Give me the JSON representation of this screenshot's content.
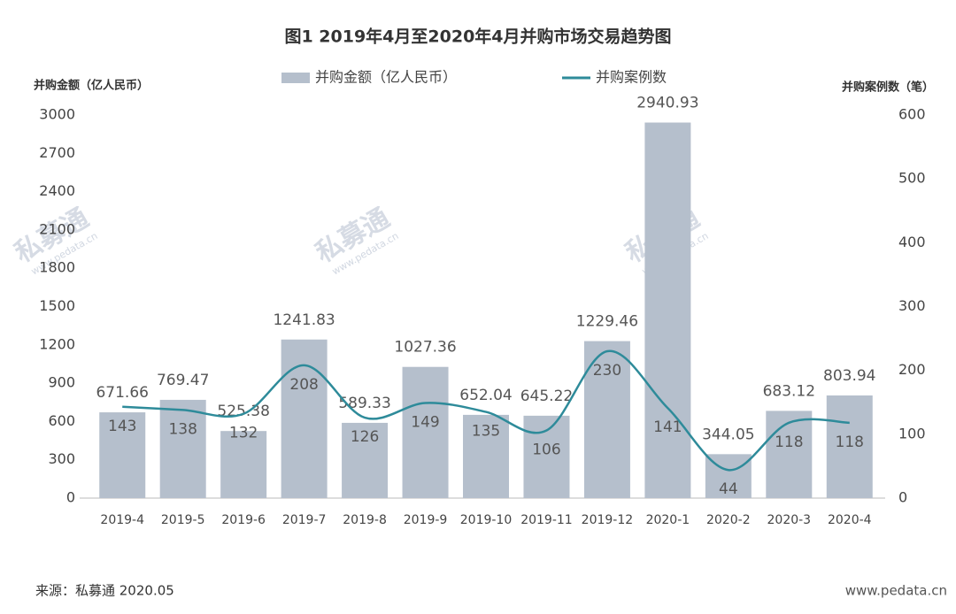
{
  "chart_data": {
    "type": "bar-line",
    "title": "图1  2019年4月至2020年4月并购市场交易趋势图",
    "y_label": "并购金额（亿人民币）",
    "y2_label": "并购案例数（笔）",
    "source": "来源：私募通 2020.05",
    "watermark": "私募通",
    "watermark_url": "www.pedata.cn",
    "categories": [
      "2019-4",
      "2019-5",
      "2019-6",
      "2019-7",
      "2019-8",
      "2019-9",
      "2019-10",
      "2019-11",
      "2019-12",
      "2020-1",
      "2020-2",
      "2020-3",
      "2020-4"
    ],
    "series": [
      {
        "name": "并购金额（亿人民币）",
        "type": "bar",
        "color": "#b5bfcc",
        "values": [
          671.66,
          769.47,
          525.38,
          1241.83,
          589.33,
          1027.36,
          652.04,
          645.22,
          1229.46,
          2940.93,
          344.05,
          683.12,
          803.94
        ]
      },
      {
        "name": "并购案例数",
        "type": "line",
        "axis": "y2",
        "color": "#2e8b9a",
        "values": [
          143,
          138,
          132,
          208,
          126,
          149,
          135,
          106,
          230,
          141,
          44,
          118,
          118
        ]
      }
    ],
    "ylim": [
      0,
      3000
    ],
    "yticks": [
      0,
      300,
      600,
      900,
      1200,
      1500,
      1800,
      2100,
      2400,
      2700,
      3000
    ],
    "y2lim": [
      0,
      600
    ],
    "y2ticks": [
      0,
      100,
      200,
      300,
      400,
      500,
      600
    ]
  }
}
